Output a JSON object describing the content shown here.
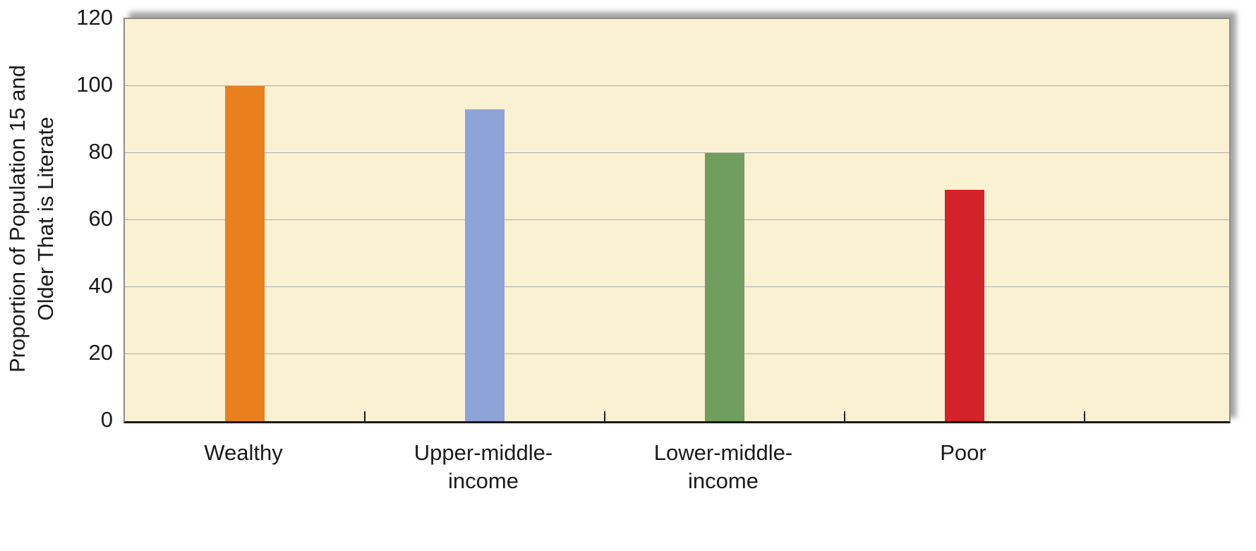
{
  "chart_data": {
    "type": "bar",
    "title": "",
    "xlabel": "",
    "ylabel": "Proportion of Population 15 and Older That is Literate",
    "ylabel_display": "Proportion of Population 15 and\nOlder That is Literate",
    "categories": [
      "Wealthy",
      "Upper-middle-income",
      "Lower-middle-income",
      "Poor"
    ],
    "category_labels": [
      "Wealthy",
      "Upper-middle-\nincome",
      "Lower-middle-\nincome",
      "Poor"
    ],
    "values": [
      100,
      93,
      80,
      69
    ],
    "bar_colors": [
      "#E8801F",
      "#8EA4D8",
      "#6F9E5F",
      "#D4222A"
    ],
    "ylim": [
      0,
      120
    ],
    "yticks": [
      0,
      20,
      40,
      60,
      80,
      100,
      120
    ],
    "grid": true,
    "legend": "none",
    "plot_background": "#FAF0D2",
    "gridline_color": "#ABABAE"
  }
}
